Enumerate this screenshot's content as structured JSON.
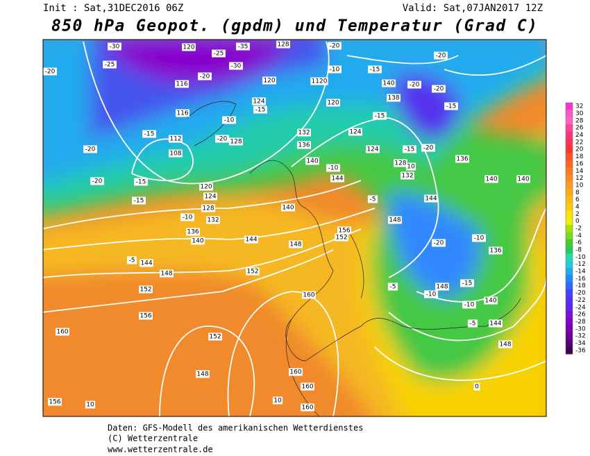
{
  "header": {
    "init": "Init : Sat,31DEC2016 06Z",
    "valid": "Valid: Sat,07JAN2017 12Z",
    "title": "850 hPa Geopot. (gpdm) und Temperatur (Grad C)"
  },
  "map": {
    "contour_labels": [
      "-30",
      "120",
      "-25",
      "-35",
      "128",
      "-20",
      "-20",
      "-20",
      "-25",
      "116",
      "-20",
      "-30",
      "120",
      "1120",
      "-10",
      "-15",
      "140",
      "-20",
      "-20",
      "138",
      "124",
      "-15",
      "120",
      "-15",
      "116",
      "-10",
      "-15",
      "-15",
      "112",
      "108",
      "-20",
      "128",
      "132",
      "124",
      "136",
      "-20",
      "-20",
      "124",
      "-15",
      "136",
      "140",
      "-10",
      "128",
      "10",
      "132",
      "-20",
      "-15",
      "144",
      "140",
      "140",
      "120",
      "124",
      "-5",
      "144",
      "-15",
      "140",
      "128",
      "-10",
      "132",
      "148",
      "156",
      "152",
      "136",
      "140",
      "144",
      "148",
      "-20",
      "-10",
      "136",
      "-5",
      "144",
      "152",
      "148",
      "152",
      "-5",
      "148",
      "-15",
      "160",
      "-10",
      "-10",
      "140",
      "156",
      "-5",
      "144",
      "160",
      "152",
      "148",
      "148",
      "160",
      "160",
      "160",
      "156",
      "10",
      "10",
      "0"
    ]
  },
  "colorbar": {
    "labels": [
      32,
      30,
      28,
      26,
      24,
      22,
      20,
      18,
      16,
      14,
      12,
      10,
      8,
      6,
      4,
      2,
      0,
      -2,
      -4,
      -6,
      -8,
      -10,
      -12,
      -14,
      -16,
      -18,
      -20,
      -22,
      -24,
      -26,
      -28,
      -30,
      -32,
      -34,
      -36
    ],
    "colors": [
      "#ff33cc",
      "#ff55cc",
      "#ff66bb",
      "#ff4499",
      "#ff3377",
      "#ff3355",
      "#ff3333",
      "#ff5522",
      "#ff6622",
      "#ff7722",
      "#ff8822",
      "#ff9922",
      "#ffaa11",
      "#ffbb11",
      "#ffcc00",
      "#ffe000",
      "#eef000",
      "#aae000",
      "#77dd22",
      "#44cc33",
      "#22cc55",
      "#22ddaa",
      "#22ccdd",
      "#22aaee",
      "#2288ff",
      "#3366ff",
      "#4444ff",
      "#5533ee",
      "#6622ee",
      "#7711dd",
      "#8800cc",
      "#7700aa",
      "#660099",
      "#550077",
      "#440055"
    ]
  },
  "footer": {
    "line1": "Daten: GFS-Modell des amerikanischen Wetterdienstes",
    "line2": "(C) Wetterzentrale",
    "line3": "www.wetterzentrale.de"
  }
}
